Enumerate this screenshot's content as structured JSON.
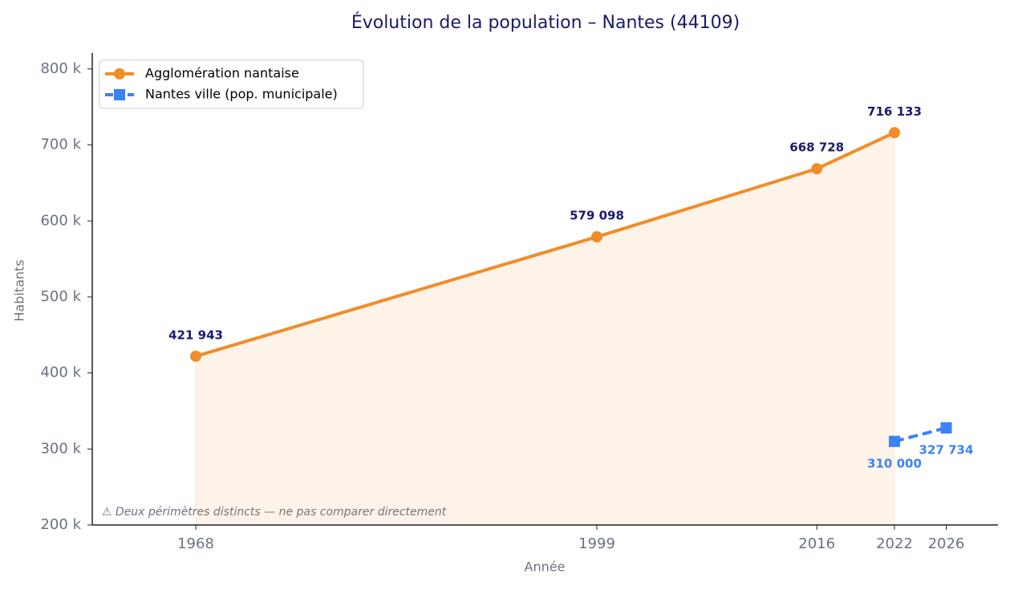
{
  "chart_data": {
    "type": "line",
    "title": "Évolution de la population – Nantes (44109)",
    "xlabel": "Année",
    "ylabel": "Habitants",
    "xlim": [
      1960,
      2030
    ],
    "xticks": [
      1968,
      1999,
      2016,
      2022,
      2026
    ],
    "ylim": [
      200000,
      821000
    ],
    "yticks": [
      {
        "value": 200000,
        "label": "200 k"
      },
      {
        "value": 300000,
        "label": "300 k"
      },
      {
        "value": 400000,
        "label": "400 k"
      },
      {
        "value": 500000,
        "label": "500 k"
      },
      {
        "value": 600000,
        "label": "600 k"
      },
      {
        "value": 700000,
        "label": "700 k"
      },
      {
        "value": 800000,
        "label": "800 k"
      }
    ],
    "grid": false,
    "legend": "upper left",
    "annotation": "⚠ Deux périmètres distincts — ne pas comparer directement",
    "series": [
      {
        "name": "Agglomération nantaise",
        "color": "#f28c28",
        "marker": "circle",
        "linestyle": "solid",
        "fill": true,
        "x": [
          1968,
          1999,
          2016,
          2022
        ],
        "values": [
          421943,
          579098,
          668728,
          716133
        ],
        "value_labels": [
          "421 943",
          "579 098",
          "668 728",
          "716 133"
        ]
      },
      {
        "name": "Nantes ville (pop. municipale)",
        "color": "#3b82f6",
        "marker": "square",
        "linestyle": "dashed",
        "fill": false,
        "x": [
          2022,
          2026
        ],
        "values": [
          310000,
          327734
        ],
        "value_labels": [
          "310 000",
          "327 734"
        ]
      }
    ]
  }
}
